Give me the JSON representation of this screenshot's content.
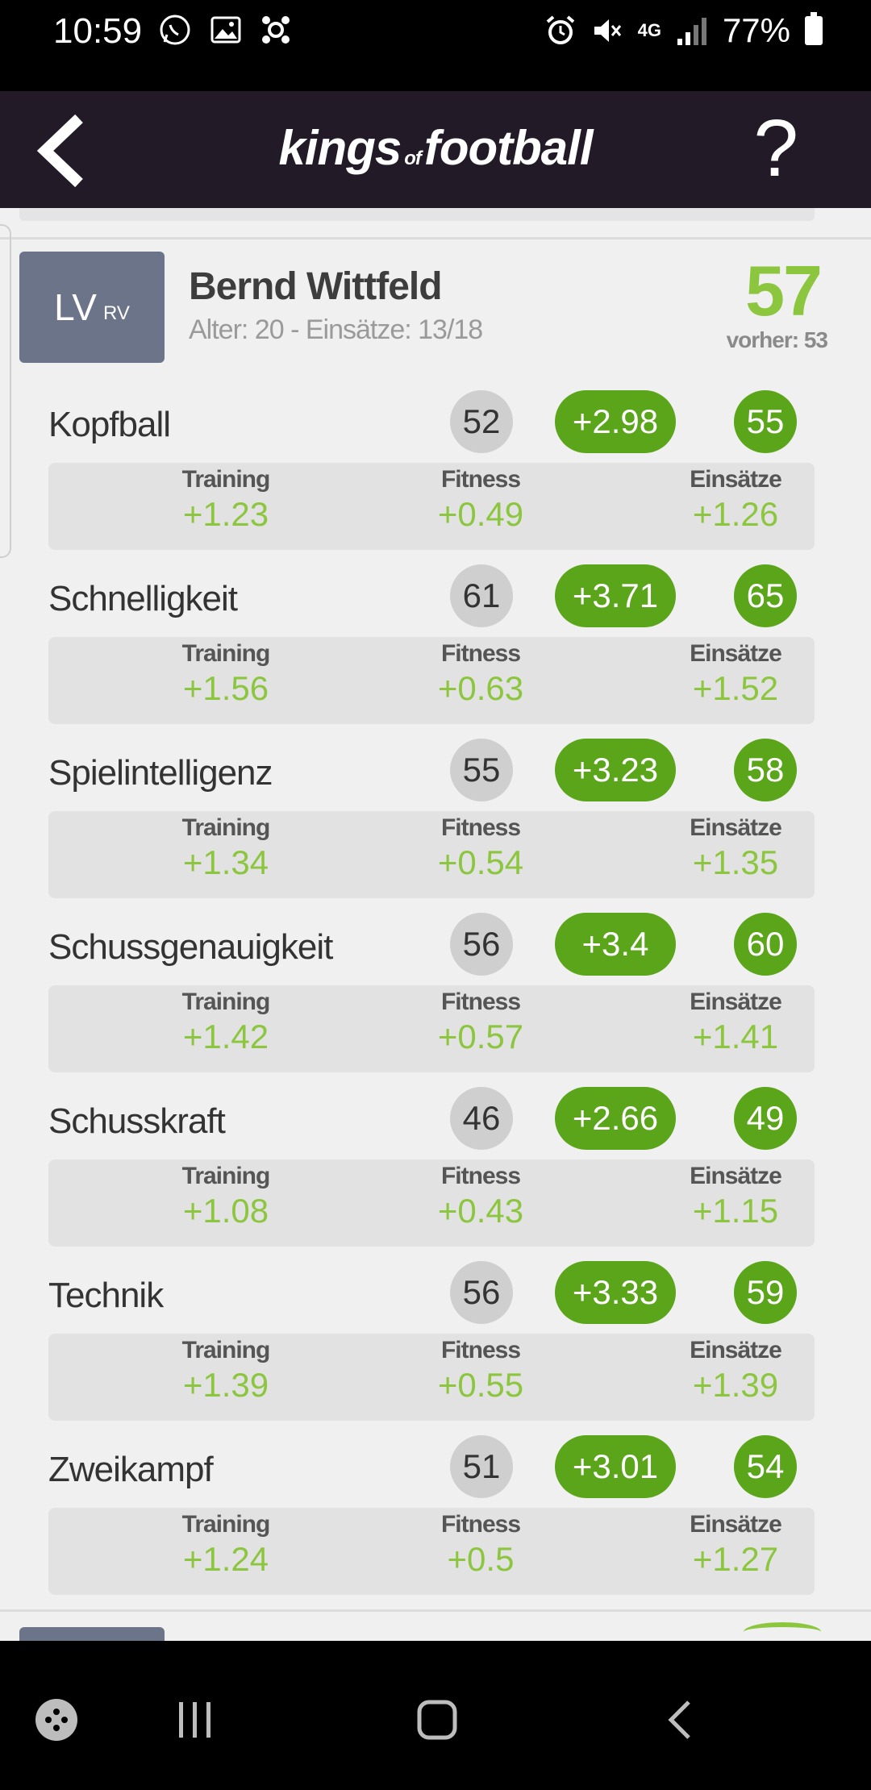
{
  "status_bar": {
    "time": "10:59",
    "left_icons": [
      "whatsapp-icon",
      "gallery-icon",
      "app-icon"
    ],
    "right_icons": [
      "alarm-icon",
      "mute-icon",
      "4g-icon",
      "signal-icon"
    ],
    "network": "4G",
    "battery": "77%"
  },
  "app_bar": {
    "logo_part1": "kings",
    "logo_part2": "of",
    "logo_part3": "football",
    "back_icon": "chevron-left-icon",
    "help_label": "?"
  },
  "player": {
    "position": "LV",
    "alt_position": "RV",
    "name": "Bernd Wittfeld",
    "meta": "Alter: 20 - Einsätze: 13/18",
    "rating": "57",
    "previous": "vorher: 53",
    "breakdown_labels": {
      "training": "Training",
      "fitness": "Fitness",
      "einsaetze": "Einsätze"
    },
    "skills": [
      {
        "name": "Kopfball",
        "base": "52",
        "delta": "+2.98",
        "new": "55",
        "training": "+1.23",
        "fitness": "+0.49",
        "einsaetze": "+1.26"
      },
      {
        "name": "Schnelligkeit",
        "base": "61",
        "delta": "+3.71",
        "new": "65",
        "training": "+1.56",
        "fitness": "+0.63",
        "einsaetze": "+1.52"
      },
      {
        "name": "Spielintelligenz",
        "base": "55",
        "delta": "+3.23",
        "new": "58",
        "training": "+1.34",
        "fitness": "+0.54",
        "einsaetze": "+1.35"
      },
      {
        "name": "Schussgenauigkeit",
        "base": "56",
        "delta": "+3.4",
        "new": "60",
        "training": "+1.42",
        "fitness": "+0.57",
        "einsaetze": "+1.41"
      },
      {
        "name": "Schusskraft",
        "base": "46",
        "delta": "+2.66",
        "new": "49",
        "training": "+1.08",
        "fitness": "+0.43",
        "einsaetze": "+1.15"
      },
      {
        "name": "Technik",
        "base": "56",
        "delta": "+3.33",
        "new": "59",
        "training": "+1.39",
        "fitness": "+0.55",
        "einsaetze": "+1.39"
      },
      {
        "name": "Zweikampf",
        "base": "51",
        "delta": "+3.01",
        "new": "54",
        "training": "+1.24",
        "fitness": "+0.5",
        "einsaetze": "+1.27"
      }
    ]
  },
  "nav_bar": {
    "icons": [
      "game-launcher-icon",
      "recent-apps-icon",
      "home-icon",
      "back-icon"
    ]
  },
  "colors": {
    "app_bar": "#231a27",
    "accent_green": "#5aa51a",
    "rating_green": "#8cc63f",
    "position_badge": "#6b7489"
  }
}
